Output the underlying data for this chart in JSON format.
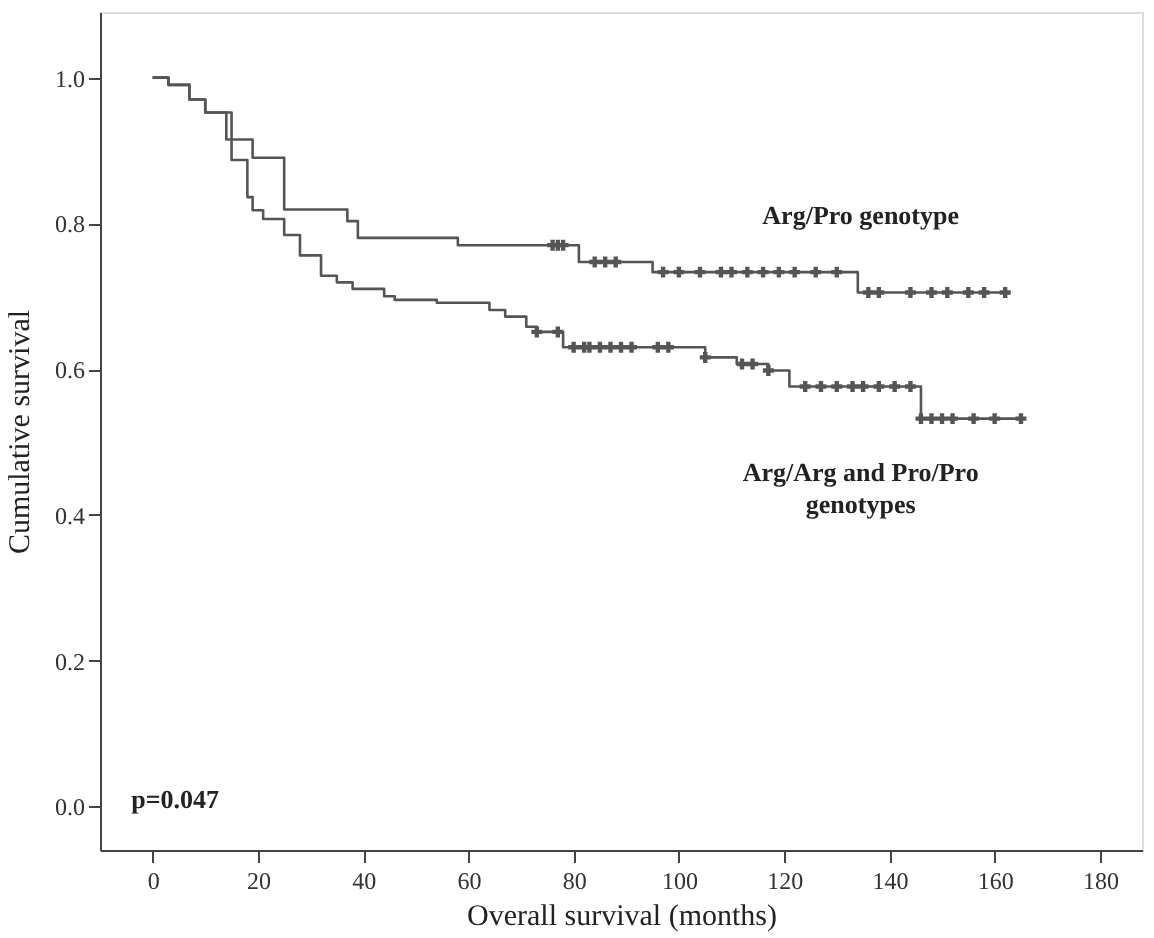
{
  "chart_data": {
    "type": "step",
    "xlabel": "Overall survival (months)",
    "ylabel": "Cumulative survival",
    "xlim": [
      -10,
      188
    ],
    "ylim": [
      -0.06,
      1.09
    ],
    "xticks": [
      0,
      20,
      40,
      60,
      80,
      100,
      120,
      140,
      160,
      180
    ],
    "yticks": [
      {
        "value": 0,
        "label": "0.0"
      },
      {
        "value": 0.2,
        "label": "0.2"
      },
      {
        "value": 0.4,
        "label": "0.4"
      },
      {
        "value": 0.6,
        "label": "0.6"
      },
      {
        "value": 0.8,
        "label": "0.8"
      },
      {
        "value": 1,
        "label": "1.0"
      }
    ],
    "grid": false,
    "line_style": "solid",
    "annotations": [
      "p=0.047"
    ],
    "series": [
      {
        "name": "Arg/Pro genotype",
        "color": "#555555",
        "x": [
          0,
          3,
          7,
          10,
          14,
          19,
          25,
          37,
          39,
          58,
          81,
          95,
          134,
          163
        ],
        "values": [
          1.0,
          0.99,
          0.97,
          0.952,
          0.915,
          0.89,
          0.819,
          0.803,
          0.78,
          0.77,
          0.747,
          0.733,
          0.705,
          0.705
        ]
      },
      {
        "name": "Arg/Arg and Pro/Pro genotypes",
        "color": "#555555",
        "x": [
          0,
          3,
          7,
          10,
          15,
          18,
          19,
          21,
          25,
          28,
          32,
          35,
          38,
          44,
          46,
          54,
          64,
          67,
          71,
          73,
          78,
          105,
          111,
          117,
          121,
          146,
          165
        ],
        "values": [
          1.0,
          0.99,
          0.97,
          0.952,
          0.887,
          0.836,
          0.818,
          0.806,
          0.784,
          0.756,
          0.728,
          0.719,
          0.71,
          0.7,
          0.695,
          0.691,
          0.681,
          0.672,
          0.658,
          0.651,
          0.63,
          0.616,
          0.607,
          0.598,
          0.576,
          0.532,
          0.532
        ]
      },
      {
        "type": "scatter",
        "marker": "cross",
        "color": "#555555",
        "x": [
          76,
          77,
          78,
          84,
          86,
          88,
          97,
          100,
          104,
          108,
          110,
          113,
          116,
          119,
          122,
          126,
          130,
          136,
          138,
          144,
          148,
          151,
          155,
          158,
          162
        ],
        "values": [
          0.77,
          0.77,
          0.77,
          0.747,
          0.747,
          0.747,
          0.733,
          0.733,
          0.733,
          0.733,
          0.733,
          0.733,
          0.733,
          0.733,
          0.733,
          0.733,
          0.733,
          0.705,
          0.705,
          0.705,
          0.705,
          0.705,
          0.705,
          0.705,
          0.705
        ]
      },
      {
        "type": "scatter",
        "marker": "cross",
        "color": "#555555",
        "x": [
          73,
          77,
          80,
          82,
          83,
          85,
          87,
          89,
          91,
          96,
          98,
          105,
          112,
          114,
          117,
          124,
          127,
          130,
          133,
          135,
          138,
          141,
          144,
          146,
          148,
          150,
          152,
          156,
          160,
          165
        ],
        "values": [
          0.651,
          0.651,
          0.63,
          0.63,
          0.63,
          0.63,
          0.63,
          0.63,
          0.63,
          0.63,
          0.63,
          0.616,
          0.607,
          0.607,
          0.598,
          0.576,
          0.576,
          0.576,
          0.576,
          0.576,
          0.576,
          0.576,
          0.576,
          0.532,
          0.532,
          0.532,
          0.532,
          0.532,
          0.532,
          0.532
        ]
      }
    ]
  }
}
